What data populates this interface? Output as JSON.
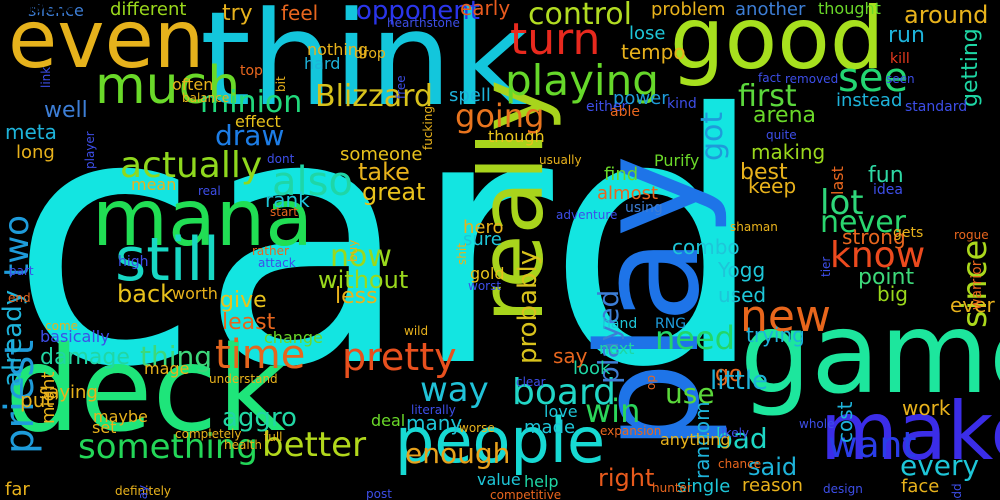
{
  "words": [
    {
      "text": "card",
      "color": "#13e5e1",
      "orient": "h"
    },
    {
      "text": "think",
      "color": "#13c6dc",
      "orient": "h"
    },
    {
      "text": "good",
      "color": "#a7e01e",
      "orient": "h"
    },
    {
      "text": "even",
      "color": "#e6b21c",
      "orient": "h"
    },
    {
      "text": "game",
      "color": "#1de69d",
      "orient": "h"
    },
    {
      "text": "deck",
      "color": "#1ee57a",
      "orient": "h"
    },
    {
      "text": "play",
      "color": "#1e74e8",
      "orient": "v"
    },
    {
      "text": "really",
      "color": "#a8d41c",
      "orient": "v"
    },
    {
      "text": "make",
      "color": "#3b2de8",
      "orient": "h"
    },
    {
      "text": "people",
      "color": "#17d9d3",
      "orient": "h"
    },
    {
      "text": "mana",
      "color": "#21de54",
      "orient": "h"
    },
    {
      "text": "much",
      "color": "#6ad929",
      "orient": "h"
    },
    {
      "text": "turn",
      "color": "#e8291e",
      "orient": "h"
    },
    {
      "text": "still",
      "color": "#18d8c4",
      "orient": "h"
    },
    {
      "text": "playing",
      "color": "#66d82a",
      "orient": "h"
    },
    {
      "text": "control",
      "color": "#b1dc22",
      "orient": "h"
    },
    {
      "text": "opponent",
      "color": "#2a35ea",
      "orient": "h"
    },
    {
      "text": "early",
      "color": "#e85a1e",
      "orient": "h"
    },
    {
      "text": "see",
      "color": "#23d672",
      "orient": "h"
    },
    {
      "text": "first",
      "color": "#5bd83c",
      "orient": "h"
    },
    {
      "text": "minion",
      "color": "#21d97c",
      "orient": "h"
    },
    {
      "text": "Blizzard",
      "color": "#d8c21c",
      "orient": "h"
    },
    {
      "text": "going",
      "color": "#e8741e",
      "orient": "h"
    },
    {
      "text": "draw",
      "color": "#1d7de6",
      "orient": "h"
    },
    {
      "text": "actually",
      "color": "#8fd81e",
      "orient": "h"
    },
    {
      "text": "also",
      "color": "#1fd6a7",
      "orient": "h"
    },
    {
      "text": "lot",
      "color": "#2fd67a",
      "orient": "h"
    },
    {
      "text": "fun",
      "color": "#2ed8a4",
      "orient": "h"
    },
    {
      "text": "never",
      "color": "#2ad66f",
      "orient": "h"
    },
    {
      "text": "know",
      "color": "#ec4a1e",
      "orient": "h"
    },
    {
      "text": "since",
      "color": "#abd81c",
      "orient": "v"
    },
    {
      "text": "time",
      "color": "#e6661e",
      "orient": "h"
    },
    {
      "text": "pretty",
      "color": "#e8501e",
      "orient": "h"
    },
    {
      "text": "new",
      "color": "#e8661c",
      "orient": "h"
    },
    {
      "text": "need",
      "color": "#22d66a",
      "orient": "h"
    },
    {
      "text": "priest",
      "color": "#1e9bda",
      "orient": "v"
    },
    {
      "text": "board",
      "color": "#21d6c6",
      "orient": "h"
    },
    {
      "text": "way",
      "color": "#21c2d8",
      "orient": "h"
    },
    {
      "text": "win",
      "color": "#2bd65a",
      "orient": "h"
    },
    {
      "text": "use",
      "color": "#5bd83a",
      "orient": "h"
    },
    {
      "text": "better",
      "color": "#b2d81c",
      "orient": "h"
    },
    {
      "text": "something",
      "color": "#23d658",
      "orient": "h"
    },
    {
      "text": "want",
      "color": "#2a3de8",
      "orient": "h"
    },
    {
      "text": "every",
      "color": "#1ec6d8",
      "orient": "h"
    },
    {
      "text": "bad",
      "color": "#1ed6c4",
      "orient": "h"
    },
    {
      "text": "enough",
      "color": "#e8a21c",
      "orient": "h"
    },
    {
      "text": "right",
      "color": "#e85a1c",
      "orient": "h"
    },
    {
      "text": "played",
      "color": "#3d7ed6",
      "orient": "v"
    },
    {
      "text": "probably",
      "color": "#d8c21c",
      "orient": "v"
    },
    {
      "text": "thing",
      "color": "#3dd87a",
      "orient": "h"
    },
    {
      "text": "damage",
      "color": "#21d6a4",
      "orient": "h"
    },
    {
      "text": "aggro",
      "color": "#21d6a4",
      "orient": "h"
    },
    {
      "text": "give",
      "color": "#e8c21c",
      "orient": "h"
    },
    {
      "text": "least",
      "color": "#e8661e",
      "orient": "h"
    },
    {
      "text": "two",
      "color": "#1e9bda",
      "orient": "v"
    },
    {
      "text": "meta",
      "color": "#1eb3da",
      "orient": "h"
    },
    {
      "text": "well",
      "color": "#3d7ed6",
      "orient": "h"
    },
    {
      "text": "already",
      "color": "#1eb3da",
      "orient": "v"
    },
    {
      "text": "take",
      "color": "#e8b21c",
      "orient": "h"
    },
    {
      "text": "great",
      "color": "#e8c21c",
      "orient": "h"
    },
    {
      "text": "now",
      "color": "#9ad81c",
      "orient": "h"
    },
    {
      "text": "without",
      "color": "#9ad81c",
      "orient": "h"
    },
    {
      "text": "less",
      "color": "#e8b21c",
      "orient": "h"
    },
    {
      "text": "back",
      "color": "#e8c21c",
      "orient": "h"
    },
    {
      "text": "combo",
      "color": "#1ec6d8",
      "orient": "h"
    },
    {
      "text": "Yogg",
      "color": "#1ec6d8",
      "orient": "h"
    },
    {
      "text": "used",
      "color": "#1ec6d8",
      "orient": "h"
    },
    {
      "text": "point",
      "color": "#3dd87a",
      "orient": "h"
    },
    {
      "text": "big",
      "color": "#9ad81c",
      "orient": "h"
    },
    {
      "text": "strong",
      "color": "#e8661e",
      "orient": "h"
    },
    {
      "text": "got",
      "color": "#1e9bda",
      "orient": "v"
    },
    {
      "text": "best",
      "color": "#e8b21c",
      "orient": "h"
    },
    {
      "text": "making",
      "color": "#9ad81c",
      "orient": "h"
    },
    {
      "text": "arena",
      "color": "#6ad829",
      "orient": "h"
    },
    {
      "text": "run",
      "color": "#1eb3da",
      "orient": "h"
    },
    {
      "text": "instead",
      "color": "#1eb3da",
      "orient": "h"
    },
    {
      "text": "power",
      "color": "#1e9bda",
      "orient": "h"
    },
    {
      "text": "spell",
      "color": "#1eb3da",
      "orient": "h"
    },
    {
      "text": "feel",
      "color": "#e8661e",
      "orient": "h"
    },
    {
      "text": "try",
      "color": "#e8b21c",
      "orient": "h"
    },
    {
      "text": "different",
      "color": "#9ad81c",
      "orient": "h"
    },
    {
      "text": "silence",
      "color": "#3d7ed6",
      "orient": "h"
    },
    {
      "text": "around",
      "color": "#e8b21c",
      "orient": "h"
    },
    {
      "text": "getting",
      "color": "#1ed6a4",
      "orient": "v"
    },
    {
      "text": "tempo",
      "color": "#e8b21c",
      "orient": "h"
    },
    {
      "text": "lose",
      "color": "#1ec6d8",
      "orient": "h"
    },
    {
      "text": "problem",
      "color": "#e8b21c",
      "orient": "h"
    },
    {
      "text": "another",
      "color": "#3d7ed6",
      "orient": "h"
    },
    {
      "text": "thought",
      "color": "#6ad829",
      "orient": "h"
    },
    {
      "text": "kill",
      "color": "#e83a1e",
      "orient": "h"
    },
    {
      "text": "Purify",
      "color": "#6ad829",
      "orient": "h"
    },
    {
      "text": "find",
      "color": "#6ad829",
      "orient": "h"
    },
    {
      "text": "almost",
      "color": "#e8661e",
      "orient": "h"
    },
    {
      "text": "using",
      "color": "#3d7ed6",
      "orient": "h"
    },
    {
      "text": "hero",
      "color": "#e8b21c",
      "orient": "h"
    },
    {
      "text": "sure",
      "color": "#1ec6d8",
      "orient": "h"
    },
    {
      "text": "gold",
      "color": "#e8c21c",
      "orient": "h"
    },
    {
      "text": "hand",
      "color": "#1ec6d8",
      "orient": "h"
    },
    {
      "text": "RNG",
      "color": "#1e9bda",
      "orient": "h"
    },
    {
      "text": "next",
      "color": "#1ed6a4",
      "orient": "h"
    },
    {
      "text": "look",
      "color": "#1ed6a4",
      "orient": "h"
    },
    {
      "text": "say",
      "color": "#e8661e",
      "orient": "h"
    },
    {
      "text": "go",
      "color": "#e8661e",
      "orient": "h"
    },
    {
      "text": "trying",
      "color": "#1eb3da",
      "orient": "h"
    },
    {
      "text": "keep",
      "color": "#e8b21c",
      "orient": "h"
    },
    {
      "text": "ever",
      "color": "#e8b21c",
      "orient": "h"
    },
    {
      "text": "warrior",
      "color": "#e8661e",
      "orient": "v"
    },
    {
      "text": "random",
      "color": "#1eb3da",
      "orient": "v"
    },
    {
      "text": "little",
      "color": "#1eb3da",
      "orient": "h"
    },
    {
      "text": "cost",
      "color": "#1eb3da",
      "orient": "v"
    },
    {
      "text": "work",
      "color": "#e8b21c",
      "orient": "h"
    },
    {
      "text": "face",
      "color": "#e8b21c",
      "orient": "h"
    },
    {
      "text": "said",
      "color": "#1eb3da",
      "orient": "h"
    },
    {
      "text": "many",
      "color": "#1ec6d8",
      "orient": "h"
    },
    {
      "text": "made",
      "color": "#1ec6d8",
      "orient": "h"
    },
    {
      "text": "deal",
      "color": "#6ad829",
      "orient": "h"
    },
    {
      "text": "love",
      "color": "#1ec6d8",
      "orient": "h"
    },
    {
      "text": "value",
      "color": "#1ec6d8",
      "orient": "h"
    },
    {
      "text": "help",
      "color": "#1ed6a4",
      "orient": "h"
    },
    {
      "text": "single",
      "color": "#1ec6d8",
      "orient": "h"
    },
    {
      "text": "reason",
      "color": "#e8b21c",
      "orient": "h"
    },
    {
      "text": "anything",
      "color": "#e8b21c",
      "orient": "h"
    },
    {
      "text": "rank",
      "color": "#1ec6d8",
      "orient": "h"
    },
    {
      "text": "mean",
      "color": "#e8b21c",
      "orient": "h"
    },
    {
      "text": "someone",
      "color": "#e8c21c",
      "orient": "h"
    },
    {
      "text": "effect",
      "color": "#e8c21c",
      "orient": "h"
    },
    {
      "text": "nothing",
      "color": "#e8b21c",
      "orient": "h"
    },
    {
      "text": "hard",
      "color": "#1eb3da",
      "orient": "h"
    },
    {
      "text": "drop",
      "color": "#e8b21c",
      "orient": "h"
    },
    {
      "text": "top",
      "color": "#e8661e",
      "orient": "h"
    },
    {
      "text": "long",
      "color": "#e8b21c",
      "orient": "h"
    },
    {
      "text": "put",
      "color": "#e8b21c",
      "orient": "h"
    },
    {
      "text": "might",
      "color": "#e8b21c",
      "orient": "v"
    },
    {
      "text": "saying",
      "color": "#e8b21c",
      "orient": "h"
    },
    {
      "text": "mage",
      "color": "#e8b21c",
      "orient": "h"
    },
    {
      "text": "maybe",
      "color": "#e8b21c",
      "orient": "h"
    },
    {
      "text": "set",
      "color": "#e8b21c",
      "orient": "h"
    },
    {
      "text": "far",
      "color": "#e8b21c",
      "orient": "h"
    },
    {
      "text": "change",
      "color": "#6ad829",
      "orient": "h"
    },
    {
      "text": "worth",
      "color": "#e8b21c",
      "orient": "h"
    },
    {
      "text": "basically",
      "color": "#3d4ee8",
      "orient": "h"
    },
    {
      "text": "though",
      "color": "#e8c21c",
      "orient": "h"
    },
    {
      "text": "either",
      "color": "#3d4ee8",
      "orient": "h"
    },
    {
      "text": "able",
      "color": "#e8661e",
      "orient": "h"
    },
    {
      "text": "kind",
      "color": "#3d4ee8",
      "orient": "h"
    },
    {
      "text": "fact",
      "color": "#3d4ee8",
      "orient": "h"
    },
    {
      "text": "removed",
      "color": "#3d4ee8",
      "orient": "h"
    },
    {
      "text": "seen",
      "color": "#3d4ee8",
      "orient": "h"
    },
    {
      "text": "standard",
      "color": "#3d4ee8",
      "orient": "h"
    },
    {
      "text": "quite",
      "color": "#3d4ee8",
      "orient": "h"
    },
    {
      "text": "last",
      "color": "#e8661e",
      "orient": "v"
    },
    {
      "text": "idea",
      "color": "#3d4ee8",
      "orient": "h"
    },
    {
      "text": "gets",
      "color": "#e8b21c",
      "orient": "h"
    },
    {
      "text": "rogue",
      "color": "#e8661e",
      "orient": "h"
    },
    {
      "text": "shaman",
      "color": "#e8b21c",
      "orient": "h"
    },
    {
      "text": "tier",
      "color": "#3d4ee8",
      "orient": "v"
    },
    {
      "text": "player",
      "color": "#3d4ee8",
      "orient": "v"
    },
    {
      "text": "link",
      "color": "#3d4ee8",
      "orient": "v"
    },
    {
      "text": "hearthstone",
      "color": "#3d4ee8",
      "orient": "h"
    },
    {
      "text": "often",
      "color": "#e8b21c",
      "orient": "h"
    },
    {
      "text": "balance",
      "color": "#e8b21c",
      "orient": "h"
    },
    {
      "text": "bit",
      "color": "#e8b21c",
      "orient": "v"
    },
    {
      "text": "free",
      "color": "#3d4ee8",
      "orient": "v"
    },
    {
      "text": "fucking",
      "color": "#e8b21c",
      "orient": "v"
    },
    {
      "text": "dont",
      "color": "#3d4ee8",
      "orient": "h"
    },
    {
      "text": "real",
      "color": "#3d4ee8",
      "orient": "h"
    },
    {
      "text": "start",
      "color": "#e8661e",
      "orient": "h"
    },
    {
      "text": "usually",
      "color": "#e8b21c",
      "orient": "h"
    },
    {
      "text": "adventure",
      "color": "#3d4ee8",
      "orient": "h"
    },
    {
      "text": "buy",
      "color": "#e8b21c",
      "orient": "v"
    },
    {
      "text": "shit",
      "color": "#e8b21c",
      "orient": "v"
    },
    {
      "text": "rather",
      "color": "#e8661e",
      "orient": "h"
    },
    {
      "text": "attack",
      "color": "#3d4ee8",
      "orient": "h"
    },
    {
      "text": "high",
      "color": "#3d4ee8",
      "orient": "h"
    },
    {
      "text": "part",
      "color": "#3d4ee8",
      "orient": "h"
    },
    {
      "text": "end",
      "color": "#e8661e",
      "orient": "h"
    },
    {
      "text": "come",
      "color": "#e8b21c",
      "orient": "h"
    },
    {
      "text": "worst",
      "color": "#3d4ee8",
      "orient": "h"
    },
    {
      "text": "wild",
      "color": "#e8b21c",
      "orient": "h"
    },
    {
      "text": "clear",
      "color": "#3d4ee8",
      "orient": "h"
    },
    {
      "text": "op",
      "color": "#e8661e",
      "orient": "v"
    },
    {
      "text": "understand",
      "color": "#e8b21c",
      "orient": "h"
    },
    {
      "text": "literally",
      "color": "#3d4ee8",
      "orient": "h"
    },
    {
      "text": "worse",
      "color": "#e8b21c",
      "orient": "h"
    },
    {
      "text": "expansion",
      "color": "#e8661e",
      "orient": "h"
    },
    {
      "text": "completely",
      "color": "#e8b21c",
      "orient": "h"
    },
    {
      "text": "full",
      "color": "#e8b21c",
      "orient": "h"
    },
    {
      "text": "health",
      "color": "#e8b21c",
      "orient": "h"
    },
    {
      "text": "definitely",
      "color": "#e8b21c",
      "orient": "h"
    },
    {
      "text": "may",
      "color": "#3d4ee8",
      "orient": "v"
    },
    {
      "text": "post",
      "color": "#3d4ee8",
      "orient": "h"
    },
    {
      "text": "competitive",
      "color": "#e8661e",
      "orient": "h"
    },
    {
      "text": "hunter",
      "color": "#e8661e",
      "orient": "h"
    },
    {
      "text": "chance",
      "color": "#e8661e",
      "orient": "h"
    },
    {
      "text": "likely",
      "color": "#3d4ee8",
      "orient": "h"
    },
    {
      "text": "whole",
      "color": "#3d4ee8",
      "orient": "h"
    },
    {
      "text": "design",
      "color": "#3d4ee8",
      "orient": "h"
    },
    {
      "text": "add",
      "color": "#3d4ee8",
      "orient": "v"
    },
    {
      "text": "removal",
      "color": "#e8661e",
      "orient": "h"
    },
    {
      "text": "everyone",
      "color": "#e8b21c",
      "orient": "h"
    }
  ]
}
